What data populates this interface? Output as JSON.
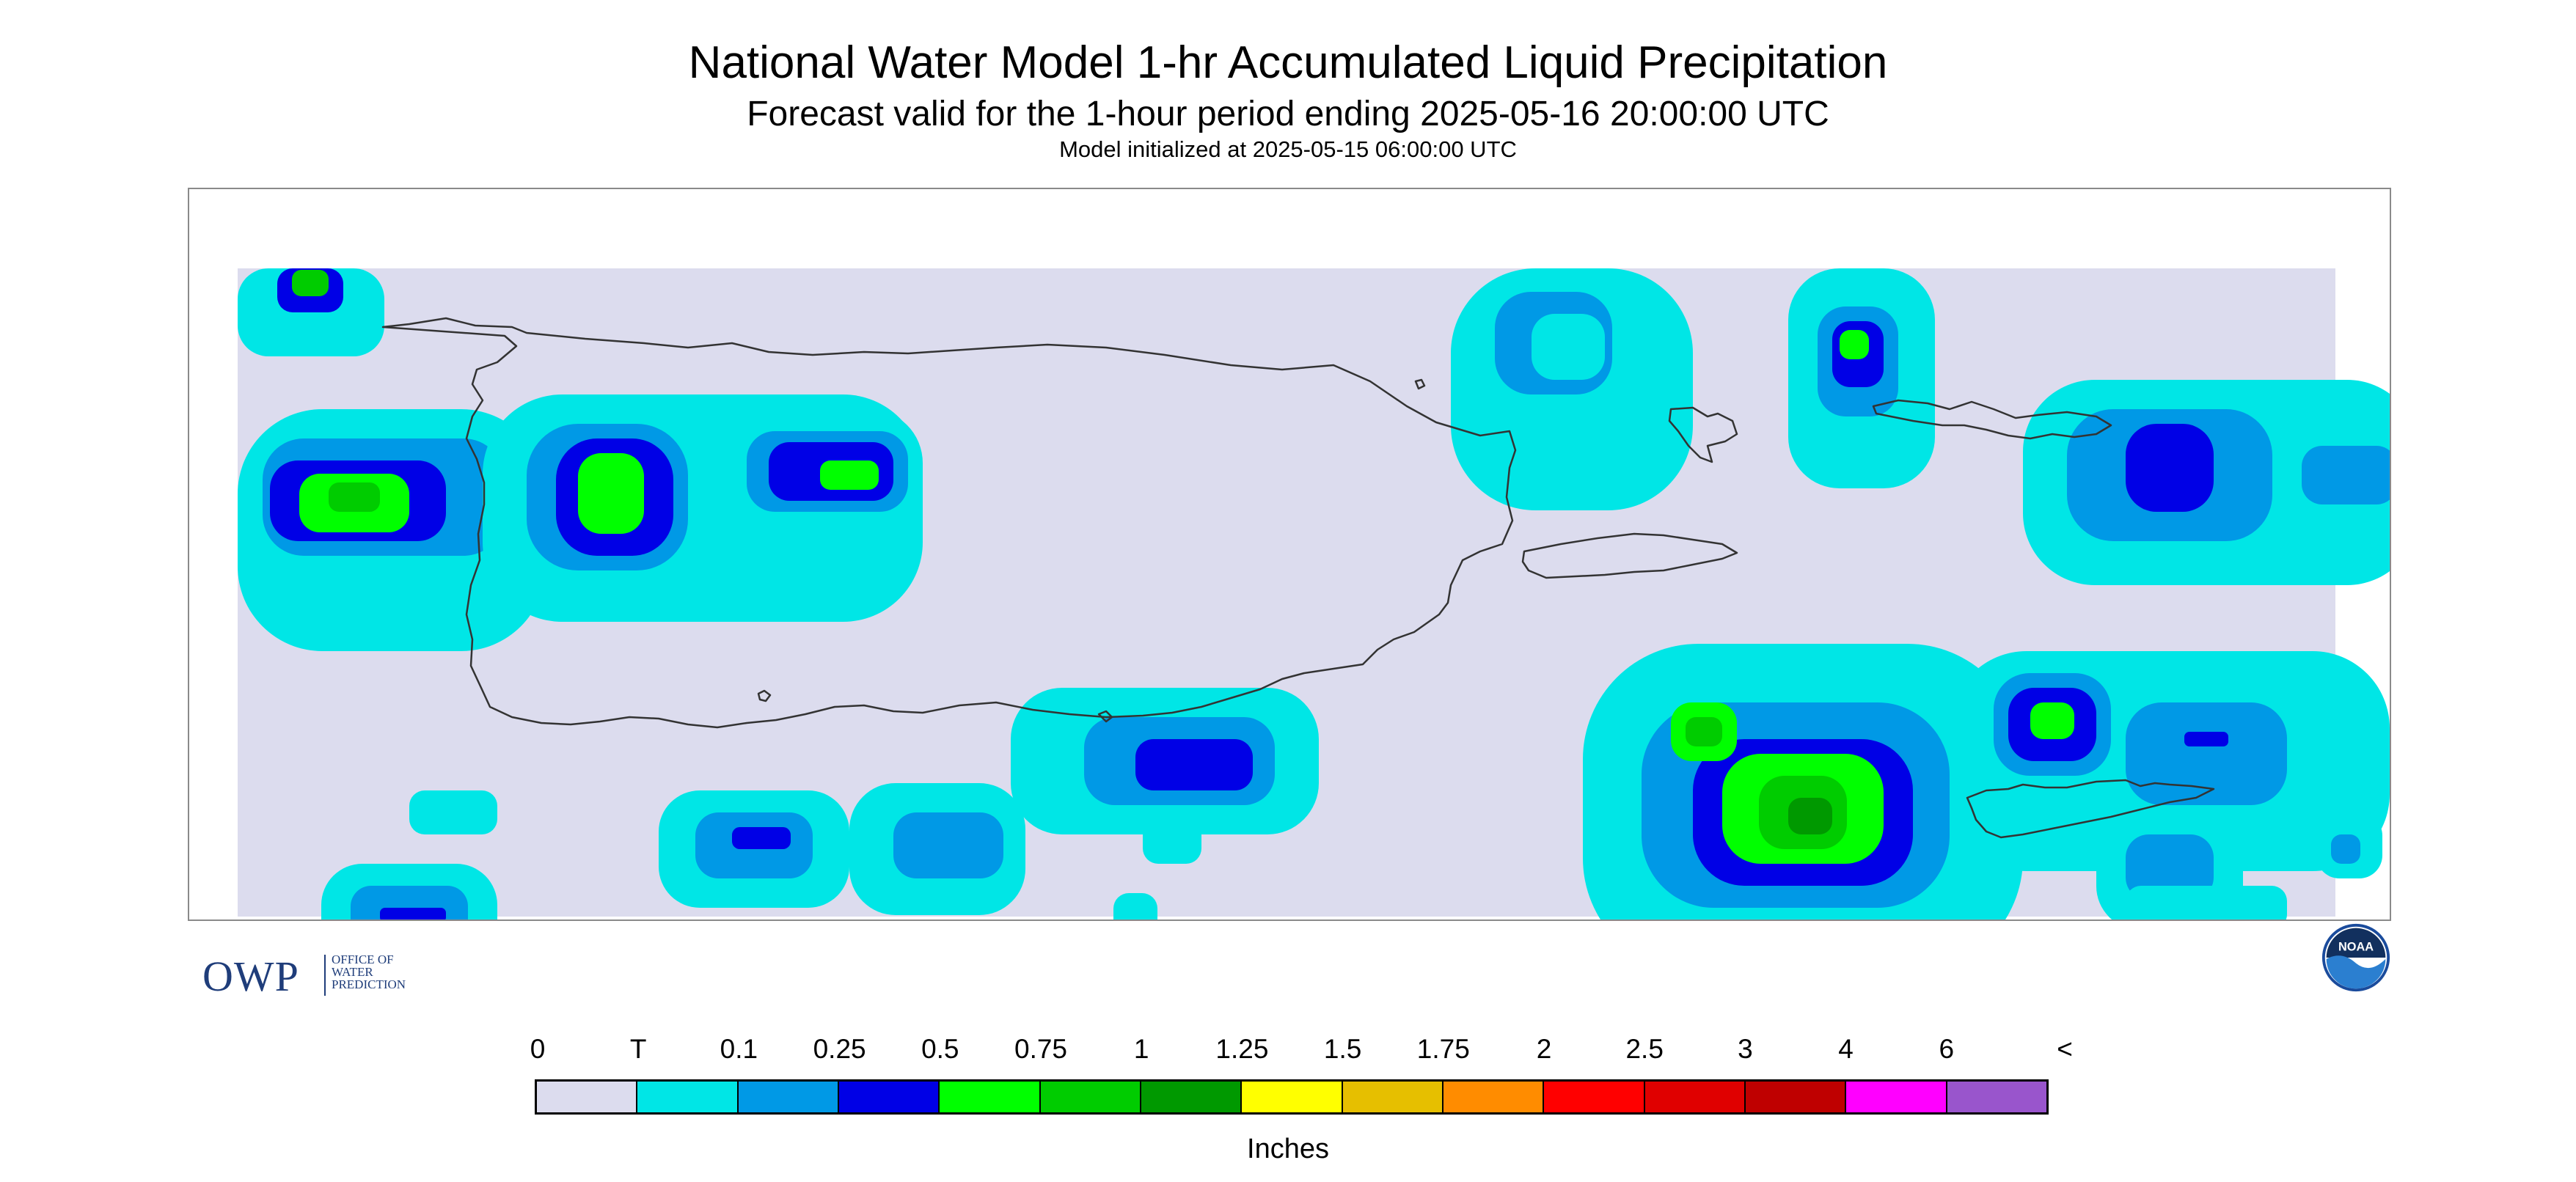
{
  "header": {
    "title": "National Water Model 1-hr Accumulated Liquid Precipitation",
    "subtitle": "Forecast valid for the 1-hour period ending 2025-05-16 20:00:00 UTC",
    "init_line": "Model initialized at 2025-05-15 06:00:00 UTC"
  },
  "map": {
    "region": "Puerto Rico and U.S. Virgin Islands",
    "background_color": "#dcdcee",
    "coastline_color": "#333333"
  },
  "logos": {
    "owp": {
      "mark": "OWP",
      "lines": [
        "OFFICE OF",
        "WATER",
        "PREDICTION"
      ]
    },
    "noaa": {
      "text": "NOAA"
    }
  },
  "legend": {
    "tick_labels": [
      "0",
      "T",
      "0.1",
      "0.25",
      "0.5",
      "0.75",
      "1",
      "1.25",
      "1.5",
      "1.75",
      "2",
      "2.5",
      "3",
      "4",
      "6",
      "<"
    ],
    "colors": [
      "#dcdcee",
      "#00e6e6",
      "#0099e6",
      "#0000e6",
      "#00ff00",
      "#00cc00",
      "#009900",
      "#ffff00",
      "#e6bf00",
      "#ff8c00",
      "#ff0000",
      "#e00000",
      "#bf0000",
      "#ff00ff",
      "#9955cc"
    ],
    "label": "Inches"
  }
}
